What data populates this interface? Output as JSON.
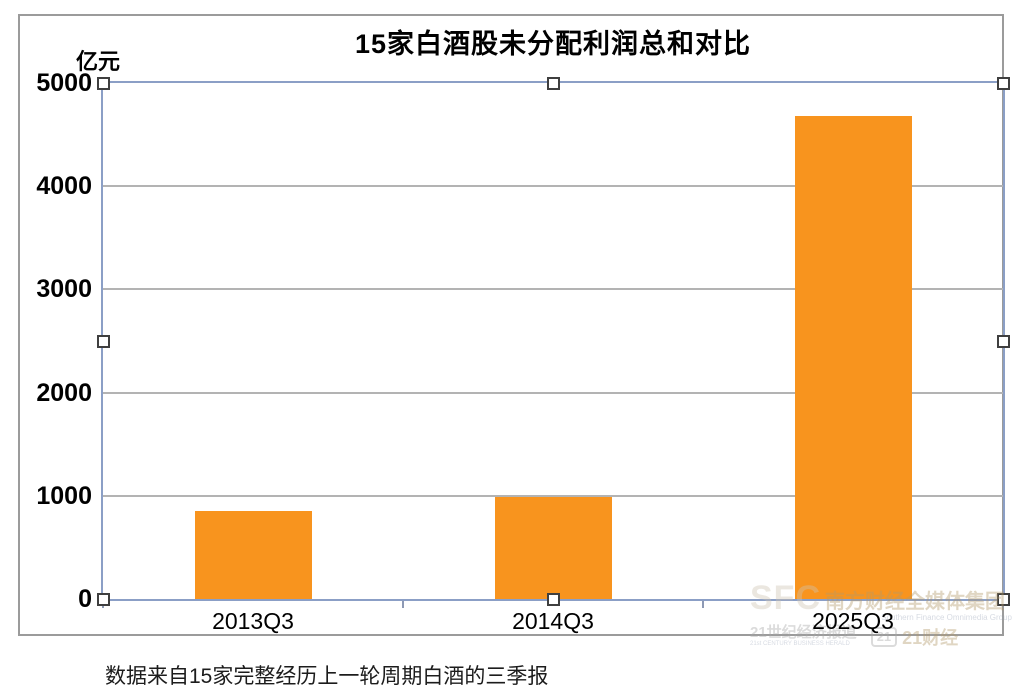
{
  "chart_data": {
    "type": "bar",
    "title": "15家白酒股未分配利润总和对比",
    "unit_label": "亿元",
    "categories": [
      "2013Q3",
      "2014Q3",
      "2025Q3"
    ],
    "values": [
      850,
      990,
      4680
    ],
    "ylim": [
      0,
      5000
    ],
    "yticks": [
      0,
      1000,
      2000,
      3000,
      4000,
      5000
    ],
    "xlabel": "",
    "ylabel": "亿元",
    "grid": true,
    "legend": "none",
    "bar_color": "#F8941E",
    "gridline_color": "#b3b3b3",
    "selection_border_color": "#8B9FC6"
  },
  "caption": "数据来自15家完整经历上一轮周期白酒的三季报",
  "watermark": {
    "sfc": "SFC",
    "group_cn": "南方财经全媒体集团",
    "group_en": "Southern Finance Omnimedia Group",
    "herald_cn": "21世纪经济报道",
    "herald_en": "21st CENTURY BUSINESS HERALD",
    "badge": "21",
    "finance_cn": "21财经"
  }
}
